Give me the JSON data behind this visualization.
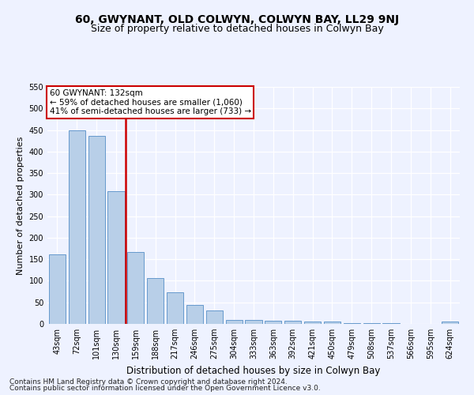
{
  "title": "60, GWYNANT, OLD COLWYN, COLWYN BAY, LL29 9NJ",
  "subtitle": "Size of property relative to detached houses in Colwyn Bay",
  "xlabel": "Distribution of detached houses by size in Colwyn Bay",
  "ylabel": "Number of detached properties",
  "categories": [
    "43sqm",
    "72sqm",
    "101sqm",
    "130sqm",
    "159sqm",
    "188sqm",
    "217sqm",
    "246sqm",
    "275sqm",
    "304sqm",
    "333sqm",
    "363sqm",
    "392sqm",
    "421sqm",
    "450sqm",
    "479sqm",
    "508sqm",
    "537sqm",
    "566sqm",
    "595sqm",
    "624sqm"
  ],
  "values": [
    162,
    450,
    437,
    308,
    166,
    106,
    74,
    44,
    32,
    10,
    10,
    8,
    8,
    5,
    5,
    2,
    2,
    2,
    0,
    0,
    5
  ],
  "bar_color": "#b8cfe8",
  "bar_edge_color": "#6699cc",
  "vline_x": 3.5,
  "vline_color": "#cc0000",
  "annotation_text": "60 GWYNANT: 132sqm\n← 59% of detached houses are smaller (1,060)\n41% of semi-detached houses are larger (733) →",
  "annotation_box_facecolor": "#ffffff",
  "annotation_box_edgecolor": "#cc0000",
  "ylim": [
    0,
    550
  ],
  "yticks": [
    0,
    50,
    100,
    150,
    200,
    250,
    300,
    350,
    400,
    450,
    500,
    550
  ],
  "background_color": "#eef2ff",
  "title_fontsize": 10,
  "subtitle_fontsize": 9,
  "xlabel_fontsize": 8.5,
  "ylabel_fontsize": 8,
  "tick_fontsize": 7,
  "annot_fontsize": 7.5,
  "footer_fontsize": 6.5,
  "footer_line1": "Contains HM Land Registry data © Crown copyright and database right 2024.",
  "footer_line2": "Contains public sector information licensed under the Open Government Licence v3.0."
}
